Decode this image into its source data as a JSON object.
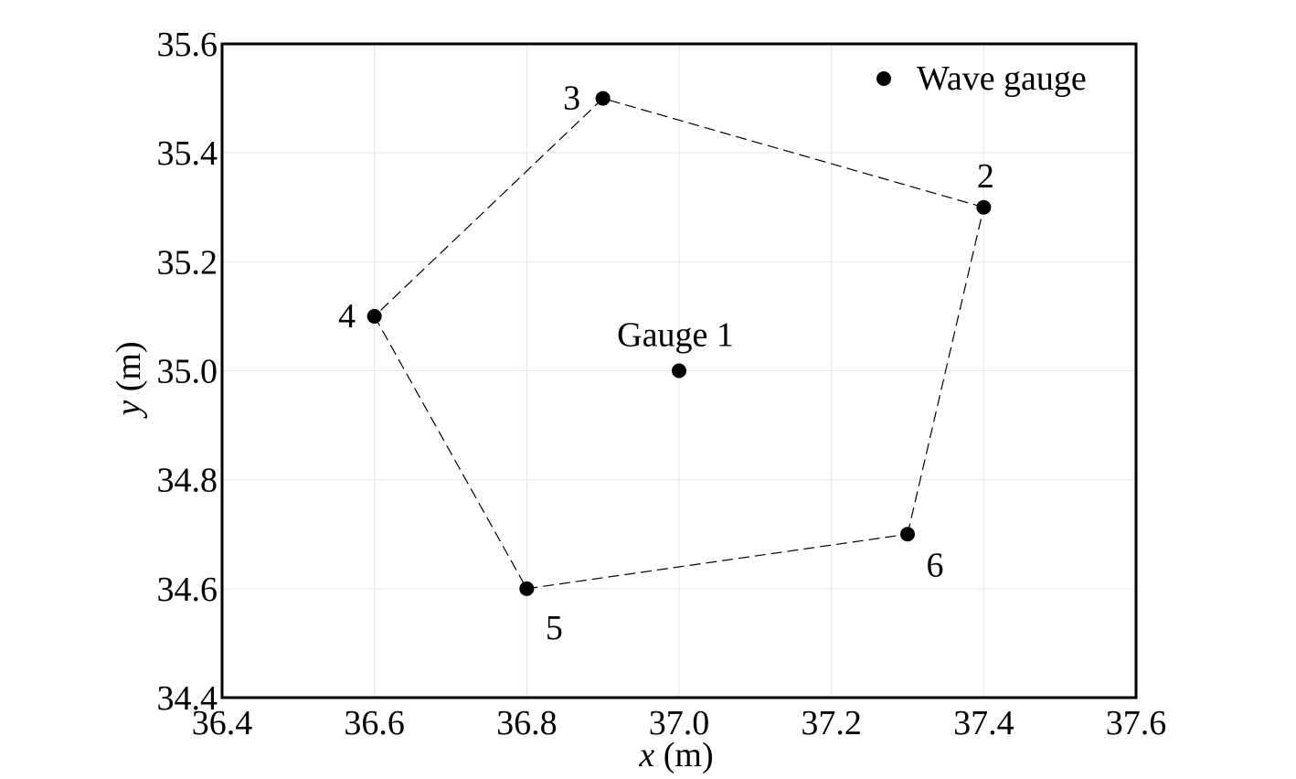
{
  "chart_data": {
    "type": "scatter",
    "title": "",
    "xlabel_var": "x",
    "xlabel_unit": "(m)",
    "ylabel_var": "y",
    "ylabel_unit": "(m)",
    "xlim": [
      36.4,
      37.6
    ],
    "ylim": [
      34.4,
      35.6
    ],
    "xticks": [
      "36.4",
      "36.6",
      "36.8",
      "37.0",
      "37.2",
      "37.4",
      "37.6"
    ],
    "yticks": [
      "34.4",
      "34.6",
      "34.8",
      "35.0",
      "35.2",
      "35.4",
      "35.6"
    ],
    "grid": true,
    "legend": {
      "position": "top-right",
      "entries": [
        "Wave gauge"
      ]
    },
    "points": [
      {
        "label": "Gauge 1",
        "x": 37.0,
        "y": 35.0
      },
      {
        "label": "2",
        "x": 37.4,
        "y": 35.3
      },
      {
        "label": "3",
        "x": 36.9,
        "y": 35.5
      },
      {
        "label": "4",
        "x": 36.6,
        "y": 35.1
      },
      {
        "label": "5",
        "x": 36.8,
        "y": 34.6
      },
      {
        "label": "6",
        "x": 37.3,
        "y": 34.7
      }
    ],
    "polygon_order": [
      "2",
      "3",
      "4",
      "5",
      "6"
    ],
    "polygon_style": "dashed"
  },
  "colors": {
    "marker": "#000000",
    "grid": "#e6e6e6",
    "frame": "#000000",
    "polygon": "#000000"
  }
}
